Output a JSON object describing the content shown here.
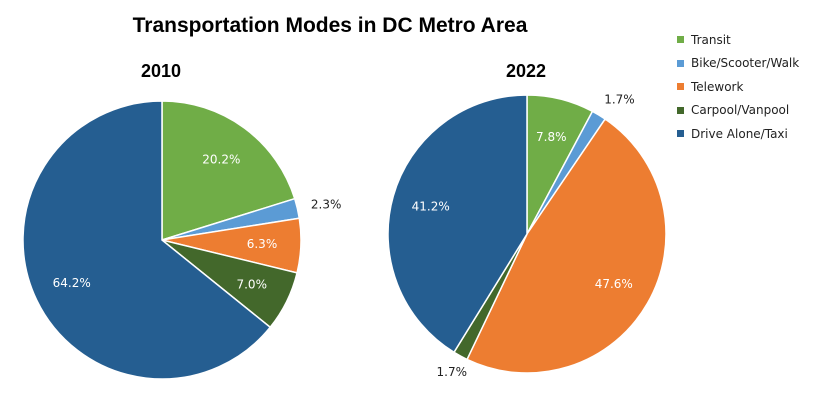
{
  "chart_data": {
    "type": "pie",
    "title": "Transportation Modes in DC Metro Area",
    "categories": [
      "Transit",
      "Bike/Scooter/Walk",
      "Telework",
      "Carpool/Vanpool",
      "Drive Alone/Taxi"
    ],
    "colors": [
      "#70AD47",
      "#5B9BD5",
      "#ED7D31",
      "#43682B",
      "#255E91"
    ],
    "legend_position": "top-right",
    "pies": [
      {
        "title": "2010",
        "values": [
          20.2,
          2.3,
          6.3,
          7.0,
          64.2
        ],
        "labels": [
          "20.2%",
          "2.3%",
          "6.3%",
          "7.0%",
          "64.2%"
        ]
      },
      {
        "title": "2022",
        "values": [
          7.8,
          1.7,
          47.6,
          1.7,
          41.2
        ],
        "labels": [
          "7.8%",
          "1.7%",
          "47.6%",
          "1.7%",
          "41.2%"
        ]
      }
    ]
  }
}
